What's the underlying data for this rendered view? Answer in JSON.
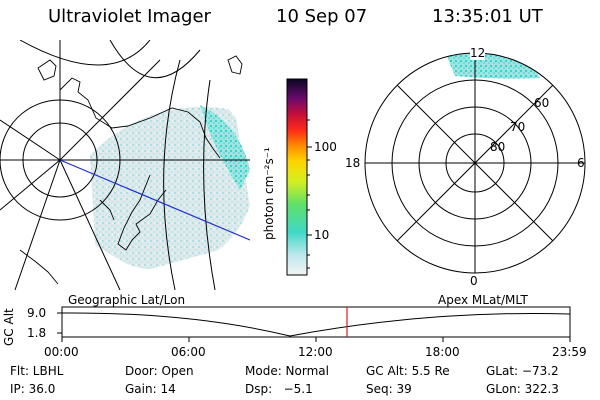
{
  "header": {
    "instrument": "Ultraviolet Imager",
    "date": "10 Sep 07",
    "time": "13:35:01 UT"
  },
  "colorbar": {
    "label": "photon cm⁻²s⁻¹",
    "ticks": [
      "100",
      "10"
    ]
  },
  "polar": {
    "mlt_labels": [
      "12",
      "18",
      "6",
      "0"
    ],
    "lat_labels": [
      "60",
      "70",
      "80"
    ]
  },
  "timeline": {
    "ylabel": "GC Alt",
    "y_ticks": [
      "9.0",
      "1.8"
    ],
    "left_caption": "Geographic Lat/Lon",
    "right_caption": "Apex MLat/MLT",
    "x_ticks": [
      "00:00",
      "06:00",
      "12:00",
      "18:00",
      "23:59"
    ],
    "current_marker": "13:35"
  },
  "info": {
    "flt": "Flt: LBHL",
    "door": "Door: Open",
    "mode": "Mode: Normal",
    "gc_alt": "GC Alt: 5.5 Re",
    "glat": "GLat: −73.2",
    "ip": "IP: 36.0",
    "gain": "Gain: 14",
    "dsp": "Dsp:   −5.1",
    "seq": "Seq: 39",
    "glon": "GLon: 322.3"
  },
  "colors": {
    "aurora_peak": "#22d6c6",
    "aurora_mid": "#8fe6e3",
    "aurora_low": "#dde8ea",
    "track_line": "#1f2fd0",
    "time_marker": "#e01a1a"
  }
}
